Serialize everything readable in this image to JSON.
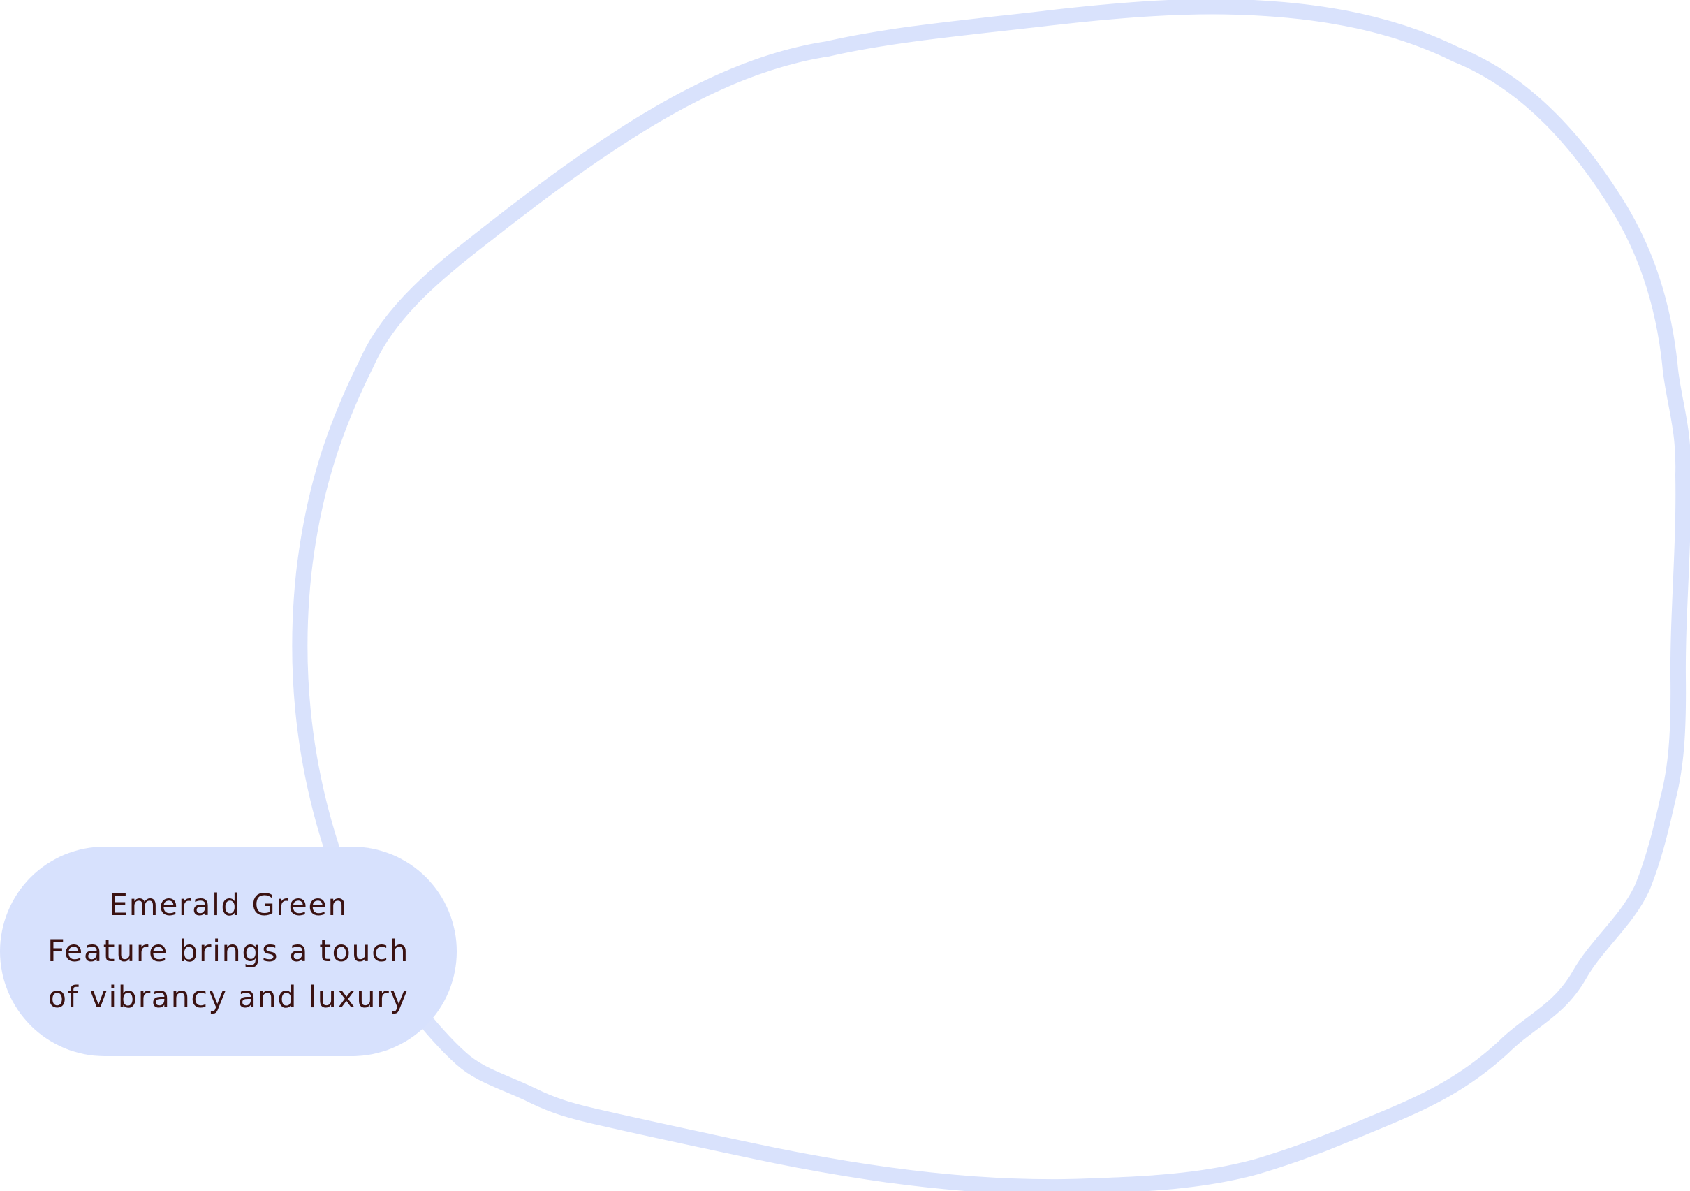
{
  "colors": {
    "background": "#ffffff",
    "outline": "#d9e2fc",
    "pill_fill": "#d7e1fd",
    "label_text": "#3a1212"
  },
  "label": {
    "lines": [
      "Emerald Green",
      "Feature brings a touch",
      "of vibrancy and luxury"
    ]
  }
}
